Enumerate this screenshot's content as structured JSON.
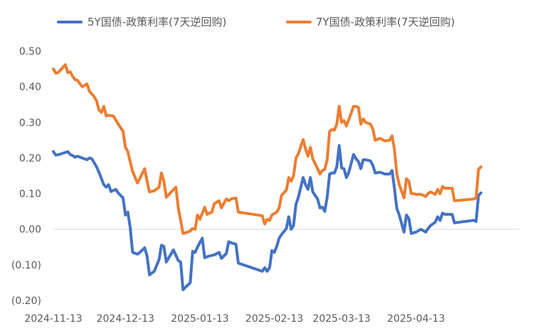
{
  "chart_data": {
    "type": "line",
    "title": "",
    "xlabel": "",
    "ylabel": "",
    "x_range": [
      "2024-11-13",
      "2025-05-26"
    ],
    "ylim": [
      -0.2,
      0.5
    ],
    "yticks": [
      -0.2,
      -0.1,
      0.0,
      0.1,
      0.2,
      0.3,
      0.4,
      0.5
    ],
    "ytick_labels": [
      "(0.20)",
      "(0.10)",
      "0.00",
      "0.10",
      "0.20",
      "0.30",
      "0.40",
      "0.50"
    ],
    "xtick_labels": [
      "2024-11-13",
      "2024-12-13",
      "2025-01-13",
      "2025-02-13",
      "2025-03-13",
      "2025-04-13"
    ],
    "grid": false,
    "legend": "top",
    "series": [
      {
        "name": "5Y国债-政策利率(7天逆回购)",
        "color": "#4472C4",
        "points": [
          [
            "2024-11-13",
            0.218
          ],
          [
            "2024-11-14",
            0.208
          ],
          [
            "2024-11-16",
            0.211
          ],
          [
            "2024-11-19",
            0.218
          ],
          [
            "2024-11-20",
            0.21
          ],
          [
            "2024-11-21",
            0.207
          ],
          [
            "2024-11-22",
            0.202
          ],
          [
            "2024-11-23",
            0.205
          ],
          [
            "2024-11-25",
            0.2
          ],
          [
            "2024-11-27",
            0.195
          ],
          [
            "2024-11-28",
            0.2
          ],
          [
            "2024-11-29",
            0.198
          ],
          [
            "2024-12-01",
            0.175
          ],
          [
            "2024-12-02",
            0.16
          ],
          [
            "2024-12-04",
            0.125
          ],
          [
            "2024-12-05",
            0.118
          ],
          [
            "2024-12-06",
            0.125
          ],
          [
            "2024-12-07",
            0.106
          ],
          [
            "2024-12-09",
            0.112
          ],
          [
            "2024-12-10",
            0.102
          ],
          [
            "2024-12-12",
            0.088
          ],
          [
            "2024-12-13",
            0.04
          ],
          [
            "2024-12-14",
            0.048
          ],
          [
            "2024-12-15",
            0.005
          ],
          [
            "2024-12-16",
            -0.065
          ],
          [
            "2024-12-18",
            -0.07
          ],
          [
            "2024-12-19",
            -0.065
          ],
          [
            "2024-12-21",
            -0.052
          ],
          [
            "2024-12-22",
            -0.075
          ],
          [
            "2024-12-23",
            -0.128
          ],
          [
            "2024-12-25",
            -0.118
          ],
          [
            "2024-12-27",
            -0.085
          ],
          [
            "2024-12-28",
            -0.045
          ],
          [
            "2024-12-29",
            -0.048
          ],
          [
            "2024-12-30",
            -0.092
          ],
          [
            "2025-01-02",
            -0.058
          ],
          [
            "2025-01-04",
            -0.088
          ],
          [
            "2025-01-05",
            -0.092
          ],
          [
            "2025-01-06",
            -0.17
          ],
          [
            "2025-01-07",
            -0.163
          ],
          [
            "2025-01-09",
            -0.15
          ],
          [
            "2025-01-10",
            -0.062
          ],
          [
            "2025-01-11",
            -0.065
          ],
          [
            "2025-01-12",
            -0.05
          ],
          [
            "2025-01-14",
            -0.025
          ],
          [
            "2025-01-15",
            -0.08
          ],
          [
            "2025-01-17",
            -0.075
          ],
          [
            "2025-01-19",
            -0.072
          ],
          [
            "2025-01-21",
            -0.065
          ],
          [
            "2025-01-22",
            -0.082
          ],
          [
            "2025-01-24",
            -0.068
          ],
          [
            "2025-01-25",
            -0.035
          ],
          [
            "2025-01-26",
            -0.038
          ],
          [
            "2025-01-28",
            -0.042
          ],
          [
            "2025-01-29",
            -0.095
          ],
          [
            "2025-02-08",
            -0.118
          ],
          [
            "2025-02-09",
            -0.108
          ],
          [
            "2025-02-10",
            -0.118
          ],
          [
            "2025-02-11",
            -0.108
          ],
          [
            "2025-02-12",
            -0.06
          ],
          [
            "2025-02-13",
            -0.065
          ],
          [
            "2025-02-14",
            -0.048
          ],
          [
            "2025-02-15",
            -0.025
          ],
          [
            "2025-02-16",
            -0.015
          ],
          [
            "2025-02-18",
            0.002
          ],
          [
            "2025-02-19",
            0.035
          ],
          [
            "2025-02-20",
            0.0
          ],
          [
            "2025-02-21",
            0.01
          ],
          [
            "2025-02-22",
            0.07
          ],
          [
            "2025-02-23",
            0.09
          ],
          [
            "2025-02-25",
            0.145
          ],
          [
            "2025-02-26",
            0.125
          ],
          [
            "2025-02-27",
            0.112
          ],
          [
            "2025-02-28",
            0.145
          ],
          [
            "2025-03-01",
            0.105
          ],
          [
            "2025-03-03",
            0.085
          ],
          [
            "2025-03-04",
            0.06
          ],
          [
            "2025-03-05",
            0.062
          ],
          [
            "2025-03-06",
            0.05
          ],
          [
            "2025-03-07",
            0.09
          ],
          [
            "2025-03-08",
            0.155
          ],
          [
            "2025-03-09",
            0.158
          ],
          [
            "2025-03-10",
            0.158
          ],
          [
            "2025-03-11",
            0.175
          ],
          [
            "2025-03-12",
            0.235
          ],
          [
            "2025-03-13",
            0.172
          ],
          [
            "2025-03-14",
            0.17
          ],
          [
            "2025-03-15",
            0.145
          ],
          [
            "2025-03-16",
            0.16
          ],
          [
            "2025-03-18",
            0.21
          ],
          [
            "2025-03-19",
            0.198
          ],
          [
            "2025-03-20",
            0.19
          ],
          [
            "2025-03-21",
            0.17
          ],
          [
            "2025-03-22",
            0.195
          ],
          [
            "2025-03-23",
            0.195
          ],
          [
            "2025-03-25",
            0.192
          ],
          [
            "2025-03-26",
            0.18
          ],
          [
            "2025-03-27",
            0.158
          ],
          [
            "2025-03-29",
            0.16
          ],
          [
            "2025-03-31",
            0.155
          ],
          [
            "2025-04-02",
            0.155
          ],
          [
            "2025-04-03",
            0.165
          ],
          [
            "2025-04-04",
            0.115
          ],
          [
            "2025-04-05",
            0.058
          ],
          [
            "2025-04-06",
            0.04
          ],
          [
            "2025-04-08",
            -0.008
          ],
          [
            "2025-04-09",
            0.04
          ],
          [
            "2025-04-10",
            0.03
          ],
          [
            "2025-04-11",
            -0.012
          ],
          [
            "2025-04-12",
            -0.01
          ],
          [
            "2025-04-13",
            -0.008
          ],
          [
            "2025-04-15",
            0.0
          ],
          [
            "2025-04-17",
            -0.008
          ],
          [
            "2025-04-18",
            0.002
          ],
          [
            "2025-04-19",
            0.01
          ],
          [
            "2025-04-21",
            0.02
          ],
          [
            "2025-04-22",
            0.035
          ],
          [
            "2025-04-23",
            0.025
          ],
          [
            "2025-04-24",
            0.045
          ],
          [
            "2025-04-25",
            0.042
          ],
          [
            "2025-04-27",
            0.042
          ],
          [
            "2025-04-28",
            0.042
          ],
          [
            "2025-04-29",
            0.018
          ],
          [
            "2025-05-07",
            0.025
          ],
          [
            "2025-05-08",
            0.022
          ],
          [
            "2025-05-09",
            0.095
          ],
          [
            "2025-05-10",
            0.102
          ]
        ]
      },
      {
        "name": "7Y国债-政策利率(7天逆回购)",
        "color": "#ED7D31",
        "points": [
          [
            "2024-11-13",
            0.45
          ],
          [
            "2024-11-14",
            0.438
          ],
          [
            "2024-11-15",
            0.44
          ],
          [
            "2024-11-18",
            0.462
          ],
          [
            "2024-11-19",
            0.44
          ],
          [
            "2024-11-20",
            0.442
          ],
          [
            "2024-11-21",
            0.43
          ],
          [
            "2024-11-22",
            0.42
          ],
          [
            "2024-11-23",
            0.418
          ],
          [
            "2024-11-25",
            0.4
          ],
          [
            "2024-11-27",
            0.408
          ],
          [
            "2024-11-28",
            0.388
          ],
          [
            "2024-11-29",
            0.38
          ],
          [
            "2024-11-30",
            0.372
          ],
          [
            "2024-12-01",
            0.36
          ],
          [
            "2024-12-02",
            0.335
          ],
          [
            "2024-12-03",
            0.328
          ],
          [
            "2024-12-04",
            0.345
          ],
          [
            "2024-12-05",
            0.318
          ],
          [
            "2024-12-06",
            0.32
          ],
          [
            "2024-12-08",
            0.318
          ],
          [
            "2024-12-10",
            0.295
          ],
          [
            "2024-12-12",
            0.275
          ],
          [
            "2024-12-13",
            0.23
          ],
          [
            "2024-12-14",
            0.218
          ],
          [
            "2024-12-15",
            0.19
          ],
          [
            "2024-12-16",
            0.162
          ],
          [
            "2024-12-18",
            0.13
          ],
          [
            "2024-12-19",
            0.142
          ],
          [
            "2024-12-21",
            0.17
          ],
          [
            "2024-12-22",
            0.135
          ],
          [
            "2024-12-23",
            0.105
          ],
          [
            "2024-12-25",
            0.108
          ],
          [
            "2024-12-27",
            0.118
          ],
          [
            "2024-12-28",
            0.158
          ],
          [
            "2024-12-29",
            0.135
          ],
          [
            "2024-12-30",
            0.09
          ],
          [
            "2025-01-03",
            0.118
          ],
          [
            "2025-01-04",
            0.06
          ],
          [
            "2025-01-05",
            0.025
          ],
          [
            "2025-01-06",
            -0.012
          ],
          [
            "2025-01-07",
            -0.01
          ],
          [
            "2025-01-09",
            -0.005
          ],
          [
            "2025-01-10",
            0.002
          ],
          [
            "2025-01-11",
            0.0
          ],
          [
            "2025-01-12",
            0.04
          ],
          [
            "2025-01-13",
            0.028
          ],
          [
            "2025-01-15",
            0.062
          ],
          [
            "2025-01-16",
            0.042
          ],
          [
            "2025-01-18",
            0.048
          ],
          [
            "2025-01-19",
            0.072
          ],
          [
            "2025-01-21",
            0.08
          ],
          [
            "2025-01-22",
            0.06
          ],
          [
            "2025-01-24",
            0.085
          ],
          [
            "2025-01-25",
            0.08
          ],
          [
            "2025-01-26",
            0.085
          ],
          [
            "2025-01-28",
            0.088
          ],
          [
            "2025-01-29",
            0.048
          ],
          [
            "2025-02-08",
            0.038
          ],
          [
            "2025-02-09",
            0.015
          ],
          [
            "2025-02-10",
            0.028
          ],
          [
            "2025-02-11",
            0.025
          ],
          [
            "2025-02-12",
            0.04
          ],
          [
            "2025-02-14",
            0.048
          ],
          [
            "2025-02-15",
            0.06
          ],
          [
            "2025-02-16",
            0.095
          ],
          [
            "2025-02-18",
            0.11
          ],
          [
            "2025-02-19",
            0.145
          ],
          [
            "2025-02-20",
            0.135
          ],
          [
            "2025-02-21",
            0.15
          ],
          [
            "2025-02-22",
            0.2
          ],
          [
            "2025-02-23",
            0.212
          ],
          [
            "2025-02-25",
            0.252
          ],
          [
            "2025-02-26",
            0.225
          ],
          [
            "2025-02-27",
            0.205
          ],
          [
            "2025-02-28",
            0.23
          ],
          [
            "2025-03-01",
            0.198
          ],
          [
            "2025-03-03",
            0.17
          ],
          [
            "2025-03-04",
            0.155
          ],
          [
            "2025-03-05",
            0.165
          ],
          [
            "2025-03-06",
            0.168
          ],
          [
            "2025-03-07",
            0.195
          ],
          [
            "2025-03-08",
            0.275
          ],
          [
            "2025-03-09",
            0.28
          ],
          [
            "2025-03-10",
            0.278
          ],
          [
            "2025-03-11",
            0.295
          ],
          [
            "2025-03-12",
            0.345
          ],
          [
            "2025-03-13",
            0.3
          ],
          [
            "2025-03-14",
            0.305
          ],
          [
            "2025-03-15",
            0.29
          ],
          [
            "2025-03-16",
            0.308
          ],
          [
            "2025-03-18",
            0.345
          ],
          [
            "2025-03-19",
            0.345
          ],
          [
            "2025-03-20",
            0.342
          ],
          [
            "2025-03-21",
            0.295
          ],
          [
            "2025-03-22",
            0.31
          ],
          [
            "2025-03-23",
            0.3
          ],
          [
            "2025-03-25",
            0.295
          ],
          [
            "2025-03-26",
            0.282
          ],
          [
            "2025-03-27",
            0.25
          ],
          [
            "2025-03-29",
            0.255
          ],
          [
            "2025-03-31",
            0.248
          ],
          [
            "2025-04-02",
            0.25
          ],
          [
            "2025-04-03",
            0.262
          ],
          [
            "2025-04-04",
            0.225
          ],
          [
            "2025-04-05",
            0.155
          ],
          [
            "2025-04-06",
            0.125
          ],
          [
            "2025-04-08",
            0.088
          ],
          [
            "2025-04-09",
            0.142
          ],
          [
            "2025-04-10",
            0.135
          ],
          [
            "2025-04-11",
            0.1
          ],
          [
            "2025-04-12",
            0.1
          ],
          [
            "2025-04-13",
            0.098
          ],
          [
            "2025-04-15",
            0.098
          ],
          [
            "2025-04-17",
            0.092
          ],
          [
            "2025-04-18",
            0.1
          ],
          [
            "2025-04-19",
            0.105
          ],
          [
            "2025-04-21",
            0.098
          ],
          [
            "2025-04-22",
            0.112
          ],
          [
            "2025-04-23",
            0.1
          ],
          [
            "2025-04-24",
            0.12
          ],
          [
            "2025-04-25",
            0.115
          ],
          [
            "2025-04-27",
            0.115
          ],
          [
            "2025-04-28",
            0.115
          ],
          [
            "2025-04-29",
            0.08
          ],
          [
            "2025-05-07",
            0.085
          ],
          [
            "2025-05-08",
            0.088
          ],
          [
            "2025-05-09",
            0.168
          ],
          [
            "2025-05-10",
            0.175
          ]
        ]
      }
    ]
  }
}
